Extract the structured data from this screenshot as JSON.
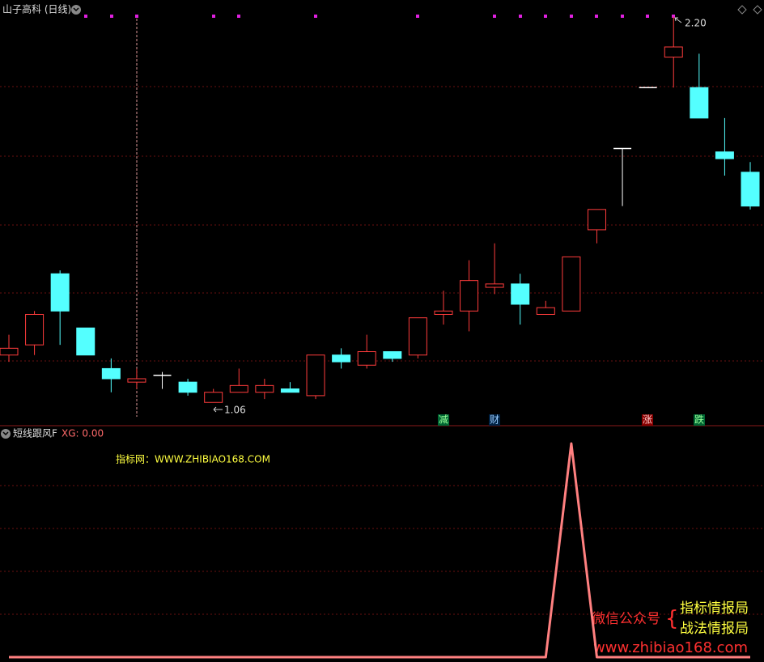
{
  "chart_data": [
    {
      "type": "candlestick",
      "title": "山子高科 (日线)",
      "open": [
        1.2,
        1.23,
        1.44,
        1.28,
        1.16,
        1.12,
        1.14,
        1.12,
        1.06,
        1.09,
        1.09,
        1.1,
        1.08,
        1.2,
        1.17,
        1.21,
        1.2,
        1.32,
        1.33,
        1.4,
        1.41,
        1.32,
        1.33,
        1.57,
        1.81,
        1.99,
        2.08,
        1.99,
        1.8,
        1.74
      ],
      "close": [
        1.22,
        1.32,
        1.33,
        1.2,
        1.13,
        1.13,
        1.14,
        1.09,
        1.09,
        1.11,
        1.11,
        1.09,
        1.2,
        1.18,
        1.21,
        1.19,
        1.31,
        1.33,
        1.42,
        1.41,
        1.35,
        1.34,
        1.49,
        1.63,
        1.81,
        1.99,
        2.11,
        1.9,
        1.78,
        1.64
      ],
      "high": [
        1.26,
        1.33,
        1.45,
        1.28,
        1.19,
        1.16,
        1.15,
        1.13,
        1.1,
        1.16,
        1.13,
        1.12,
        1.2,
        1.22,
        1.26,
        1.21,
        1.31,
        1.39,
        1.48,
        1.53,
        1.44,
        1.36,
        1.49,
        1.63,
        1.81,
        1.99,
        2.2,
        2.09,
        1.9,
        1.77
      ],
      "low": [
        1.18,
        1.2,
        1.23,
        1.2,
        1.09,
        1.1,
        1.1,
        1.08,
        1.06,
        1.09,
        1.07,
        1.09,
        1.07,
        1.16,
        1.16,
        1.18,
        1.19,
        1.29,
        1.27,
        1.38,
        1.29,
        1.32,
        1.33,
        1.53,
        1.64,
        1.99,
        1.99,
        1.9,
        1.73,
        1.63
      ],
      "ylim": [
        1.02,
        2.22
      ],
      "up_color": "#ff3c3c",
      "down_color": "#54ffff",
      "flat_color": "#ffffff",
      "price_labels": {
        "high": "2.20",
        "low": "1.06"
      },
      "annotations": [
        "减",
        "财",
        "涨",
        "跌"
      ]
    },
    {
      "type": "line",
      "title": "短线跟风F",
      "legend_text": "XG: 0.00",
      "subtitle": "指标网：WWW.ZHIBIAO168.COM",
      "series": [
        {
          "color": "#ff8080",
          "values": [
            0,
            0,
            0,
            0,
            0,
            0,
            0,
            0,
            0,
            0,
            0,
            0,
            0,
            0,
            0,
            0,
            0,
            0,
            0,
            0,
            0,
            0,
            1,
            0,
            0,
            0,
            0,
            0,
            0,
            0
          ]
        }
      ],
      "ylim": [
        0,
        1
      ]
    }
  ],
  "watermark": {
    "account": "微信公众号",
    "brace": "{",
    "name1": "指标情报局",
    "name2": "战法情报局",
    "url": "www.zhibiao168.com"
  }
}
